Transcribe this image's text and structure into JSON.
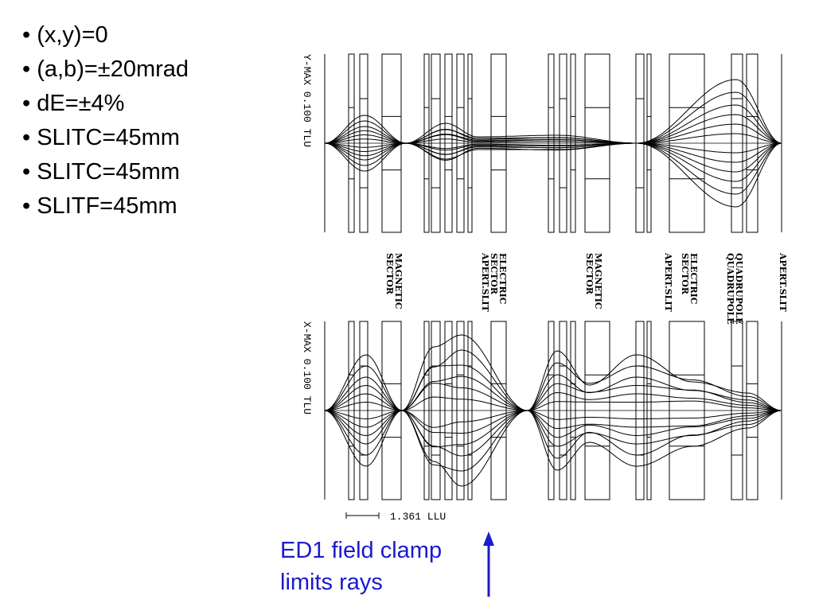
{
  "bullets": [
    "(x,y)=0",
    "(a,b)=±20mrad",
    "dE=±4%",
    "SLITC=45mm",
    "SLITC=45mm",
    "SLITF=45mm"
  ],
  "top_plot": {
    "axis_label": "Y-MAX  0.100  TLU"
  },
  "bottom_plot": {
    "axis_label": "X-MAX  0.100  TLU"
  },
  "element_labels": [
    {
      "lines": [
        "MAGNETIC",
        "SECTOR"
      ]
    },
    {
      "lines": [
        "ELECTRIC",
        "SECTOR",
        "APERT.SLIT"
      ]
    },
    {
      "lines": [
        "MAGNETIC",
        "SECTOR"
      ]
    },
    {
      "lines": [
        "APERT.SLIT"
      ]
    },
    {
      "lines": [
        "ELECTRIC",
        "SECTOR"
      ]
    },
    {
      "lines": [
        "QUADRUPOLE",
        "QUADRUPOLE"
      ]
    },
    {
      "lines": [
        "APERT.SLIT"
      ]
    }
  ],
  "scale_bar": {
    "label": "1.361  LLU"
  },
  "annotation": {
    "line1": "ED1 field clamp",
    "line2": "limits rays",
    "color": "#1a1ad0"
  }
}
